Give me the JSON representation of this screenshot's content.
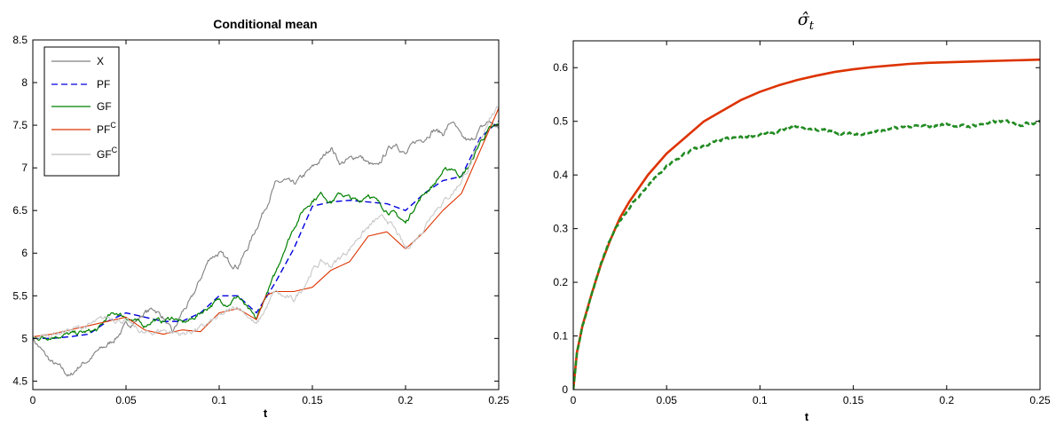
{
  "chart_data": [
    {
      "type": "line",
      "title": "Conditional mean",
      "xlabel": "t",
      "ylabel": "",
      "xlim": [
        0,
        0.25
      ],
      "ylim": [
        4.4,
        8.5
      ],
      "xticks": [
        "0",
        "0.05",
        "0.1",
        "0.15",
        "0.2",
        "0.25"
      ],
      "yticks": [
        "4.5",
        "5",
        "5.5",
        "6",
        "6.5",
        "7",
        "7.5",
        "8",
        "8.5"
      ],
      "grid": false,
      "legend_position": "top-left",
      "series": [
        {
          "name": "X",
          "name_sup": "",
          "color": "#808080",
          "style": "solid",
          "noise": 0.05,
          "x": [
            0,
            0.005,
            0.01,
            0.015,
            0.02,
            0.025,
            0.03,
            0.035,
            0.04,
            0.045,
            0.05,
            0.055,
            0.06,
            0.065,
            0.07,
            0.075,
            0.08,
            0.085,
            0.09,
            0.095,
            0.1,
            0.105,
            0.11,
            0.115,
            0.12,
            0.125,
            0.13,
            0.135,
            0.14,
            0.145,
            0.15,
            0.155,
            0.16,
            0.165,
            0.17,
            0.175,
            0.18,
            0.185,
            0.19,
            0.195,
            0.2,
            0.205,
            0.21,
            0.215,
            0.22,
            0.225,
            0.23,
            0.235,
            0.24,
            0.245,
            0.25
          ],
          "y": [
            5.0,
            4.85,
            4.72,
            4.65,
            4.55,
            4.68,
            4.75,
            4.85,
            4.92,
            5.02,
            5.15,
            5.2,
            5.3,
            5.35,
            5.25,
            5.05,
            5.3,
            5.45,
            5.7,
            5.95,
            6.0,
            5.9,
            5.85,
            6.05,
            6.3,
            6.55,
            6.8,
            6.85,
            6.8,
            6.9,
            7.0,
            7.1,
            7.25,
            7.05,
            7.1,
            7.15,
            7.05,
            7.0,
            7.2,
            7.3,
            7.15,
            7.3,
            7.35,
            7.45,
            7.4,
            7.55,
            7.35,
            7.3,
            7.45,
            7.55,
            7.45
          ]
        },
        {
          "name": "PF",
          "name_sup": "",
          "color": "#0000dd",
          "style": "dashed",
          "noise": 0,
          "x": [
            0,
            0.01,
            0.02,
            0.03,
            0.04,
            0.05,
            0.06,
            0.07,
            0.08,
            0.09,
            0.1,
            0.11,
            0.12,
            0.13,
            0.14,
            0.15,
            0.16,
            0.17,
            0.18,
            0.19,
            0.2,
            0.21,
            0.22,
            0.23,
            0.24,
            0.25
          ],
          "y": [
            5.0,
            5.0,
            5.02,
            5.05,
            5.2,
            5.3,
            5.25,
            5.2,
            5.2,
            5.3,
            5.5,
            5.5,
            5.3,
            5.65,
            6.05,
            6.55,
            6.6,
            6.62,
            6.6,
            6.58,
            6.5,
            6.7,
            6.85,
            6.9,
            7.35,
            7.55
          ]
        },
        {
          "name": "GF",
          "name_sup": "",
          "color": "#008000",
          "style": "solid",
          "noise": 0.04,
          "x": [
            0,
            0.01,
            0.02,
            0.03,
            0.035,
            0.04,
            0.045,
            0.05,
            0.055,
            0.06,
            0.065,
            0.07,
            0.075,
            0.08,
            0.085,
            0.09,
            0.095,
            0.1,
            0.105,
            0.11,
            0.115,
            0.12,
            0.125,
            0.13,
            0.135,
            0.14,
            0.145,
            0.15,
            0.155,
            0.16,
            0.165,
            0.17,
            0.175,
            0.18,
            0.185,
            0.19,
            0.195,
            0.2,
            0.205,
            0.21,
            0.215,
            0.22,
            0.225,
            0.23,
            0.235,
            0.24,
            0.245,
            0.25
          ],
          "y": [
            5.0,
            5.02,
            5.05,
            5.08,
            5.1,
            5.25,
            5.3,
            5.25,
            5.2,
            5.15,
            5.22,
            5.2,
            5.25,
            5.18,
            5.22,
            5.3,
            5.38,
            5.45,
            5.4,
            5.5,
            5.35,
            5.22,
            5.5,
            5.75,
            6.05,
            6.3,
            6.5,
            6.62,
            6.7,
            6.6,
            6.7,
            6.65,
            6.6,
            6.7,
            6.6,
            6.5,
            6.45,
            6.35,
            6.55,
            6.7,
            6.8,
            6.95,
            7.0,
            6.9,
            7.05,
            7.3,
            7.45,
            7.5
          ]
        },
        {
          "name": "PF",
          "name_sup": "C",
          "color": "#dd3300",
          "style": "solid",
          "noise": 0,
          "x": [
            0,
            0.01,
            0.02,
            0.03,
            0.04,
            0.05,
            0.06,
            0.07,
            0.08,
            0.09,
            0.1,
            0.11,
            0.12,
            0.125,
            0.13,
            0.14,
            0.15,
            0.16,
            0.17,
            0.18,
            0.19,
            0.2,
            0.21,
            0.22,
            0.23,
            0.24,
            0.25
          ],
          "y": [
            5.02,
            5.05,
            5.1,
            5.15,
            5.2,
            5.25,
            5.1,
            5.05,
            5.1,
            5.08,
            5.3,
            5.35,
            5.22,
            5.5,
            5.55,
            5.55,
            5.6,
            5.8,
            5.9,
            6.2,
            6.25,
            6.05,
            6.25,
            6.5,
            6.7,
            7.2,
            7.7
          ]
        },
        {
          "name": "GF",
          "name_sup": "C",
          "color": "#c8c8c8",
          "style": "solid",
          "noise": 0.05,
          "x": [
            0,
            0.01,
            0.02,
            0.03,
            0.04,
            0.05,
            0.06,
            0.07,
            0.08,
            0.09,
            0.1,
            0.11,
            0.115,
            0.12,
            0.125,
            0.13,
            0.135,
            0.14,
            0.145,
            0.15,
            0.155,
            0.16,
            0.17,
            0.175,
            0.18,
            0.185,
            0.19,
            0.195,
            0.2,
            0.205,
            0.21,
            0.215,
            0.22,
            0.225,
            0.23,
            0.235,
            0.24,
            0.245,
            0.25
          ],
          "y": [
            5.0,
            5.05,
            5.1,
            5.15,
            5.25,
            5.2,
            5.05,
            5.1,
            5.05,
            5.12,
            5.25,
            5.38,
            5.28,
            5.15,
            5.35,
            5.55,
            5.48,
            5.45,
            5.6,
            5.8,
            5.9,
            5.85,
            6.05,
            6.2,
            6.3,
            6.4,
            6.4,
            6.25,
            6.05,
            6.15,
            6.3,
            6.5,
            6.6,
            6.7,
            6.85,
            7.05,
            7.3,
            7.6,
            7.7
          ]
        }
      ]
    },
    {
      "type": "line",
      "title": "σ̂",
      "title_sub": "t",
      "xlabel": "t",
      "ylabel": "",
      "xlim": [
        0,
        0.25
      ],
      "ylim": [
        0,
        0.65
      ],
      "xticks": [
        "0",
        "0.05",
        "0.1",
        "0.15",
        "0.2",
        "0.25"
      ],
      "yticks": [
        "0",
        "0.1",
        "0.2",
        "0.3",
        "0.4",
        "0.5",
        "0.6"
      ],
      "grid": false,
      "series": [
        {
          "color": "#dd3300",
          "style": "solid",
          "noise": 0,
          "x": [
            0,
            0.002,
            0.005,
            0.01,
            0.015,
            0.02,
            0.025,
            0.03,
            0.04,
            0.05,
            0.06,
            0.07,
            0.08,
            0.09,
            0.1,
            0.11,
            0.12,
            0.13,
            0.14,
            0.15,
            0.16,
            0.17,
            0.18,
            0.19,
            0.2,
            0.21,
            0.22,
            0.23,
            0.24,
            0.25
          ],
          "y": [
            0.0,
            0.07,
            0.12,
            0.18,
            0.235,
            0.28,
            0.32,
            0.35,
            0.4,
            0.44,
            0.47,
            0.5,
            0.52,
            0.54,
            0.555,
            0.567,
            0.577,
            0.585,
            0.592,
            0.597,
            0.601,
            0.604,
            0.607,
            0.609,
            0.61,
            0.611,
            0.612,
            0.613,
            0.614,
            0.615
          ]
        },
        {
          "color": "#228b22",
          "style": "dashed",
          "noise": 0.004,
          "x": [
            0,
            0.002,
            0.005,
            0.01,
            0.015,
            0.02,
            0.025,
            0.03,
            0.035,
            0.04,
            0.05,
            0.06,
            0.07,
            0.08,
            0.09,
            0.1,
            0.11,
            0.12,
            0.13,
            0.14,
            0.15,
            0.16,
            0.17,
            0.18,
            0.19,
            0.2,
            0.21,
            0.22,
            0.23,
            0.24,
            0.25
          ],
          "y": [
            0.0,
            0.07,
            0.12,
            0.18,
            0.235,
            0.28,
            0.315,
            0.34,
            0.36,
            0.38,
            0.415,
            0.44,
            0.455,
            0.465,
            0.47,
            0.475,
            0.48,
            0.49,
            0.485,
            0.48,
            0.475,
            0.48,
            0.485,
            0.49,
            0.49,
            0.495,
            0.49,
            0.495,
            0.5,
            0.495,
            0.5
          ]
        }
      ]
    }
  ]
}
